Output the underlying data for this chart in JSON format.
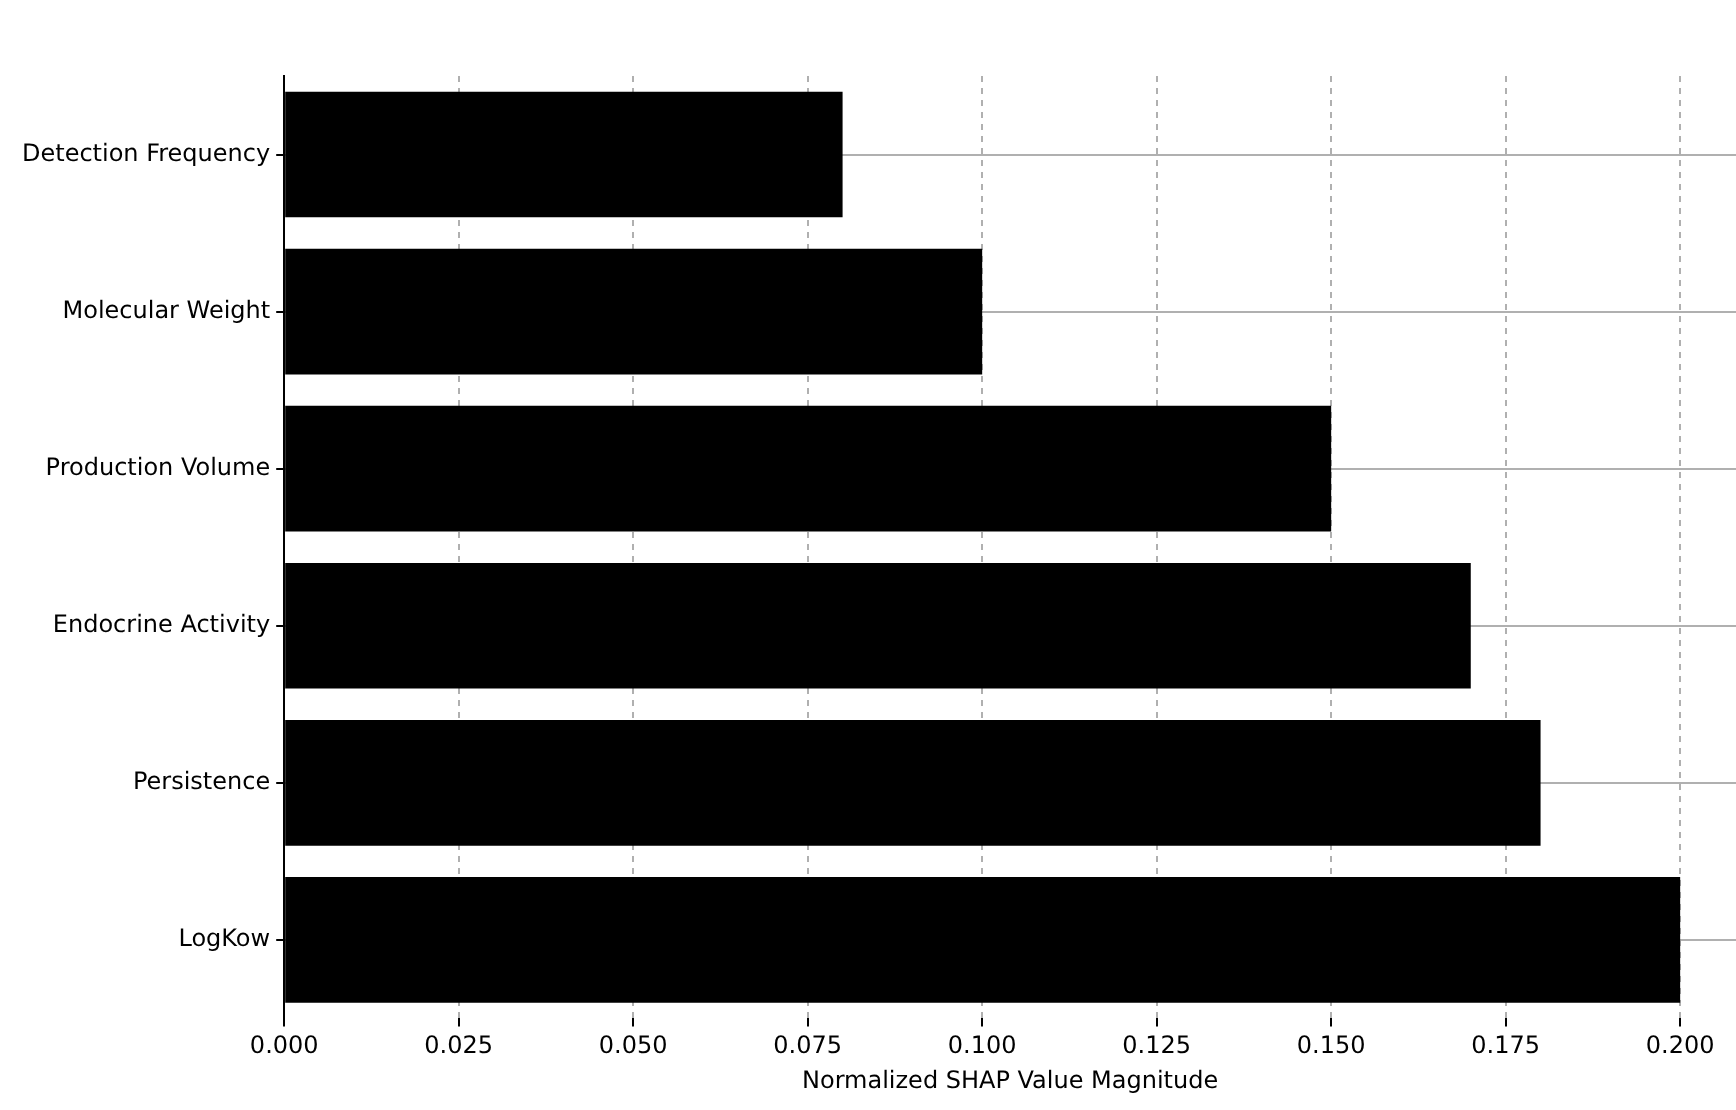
{
  "chart_data": {
    "type": "bar",
    "orientation": "horizontal",
    "xlabel": "Normalized SHAP Value Magnitude",
    "categories": [
      "Detection Frequency",
      "Molecular Weight",
      "Production Volume",
      "Endocrine Activity",
      "Persistence",
      "LogKow"
    ],
    "values": [
      0.08,
      0.1,
      0.15,
      0.17,
      0.18,
      0.2
    ],
    "color": "#000000",
    "xlim": [
      0,
      0.208
    ],
    "xticks": [
      {
        "value": 0,
        "label": "0.000"
      },
      {
        "value": 0.025,
        "label": "0.025"
      },
      {
        "value": 0.05,
        "label": "0.050"
      },
      {
        "value": 0.075,
        "label": "0.075"
      },
      {
        "value": 0.1,
        "label": "0.100"
      },
      {
        "value": 0.125,
        "label": "0.125"
      },
      {
        "value": 0.15,
        "label": "0.150"
      },
      {
        "value": 0.175,
        "label": "0.175"
      },
      {
        "value": 0.2,
        "label": "0.200"
      }
    ],
    "grid": true
  }
}
